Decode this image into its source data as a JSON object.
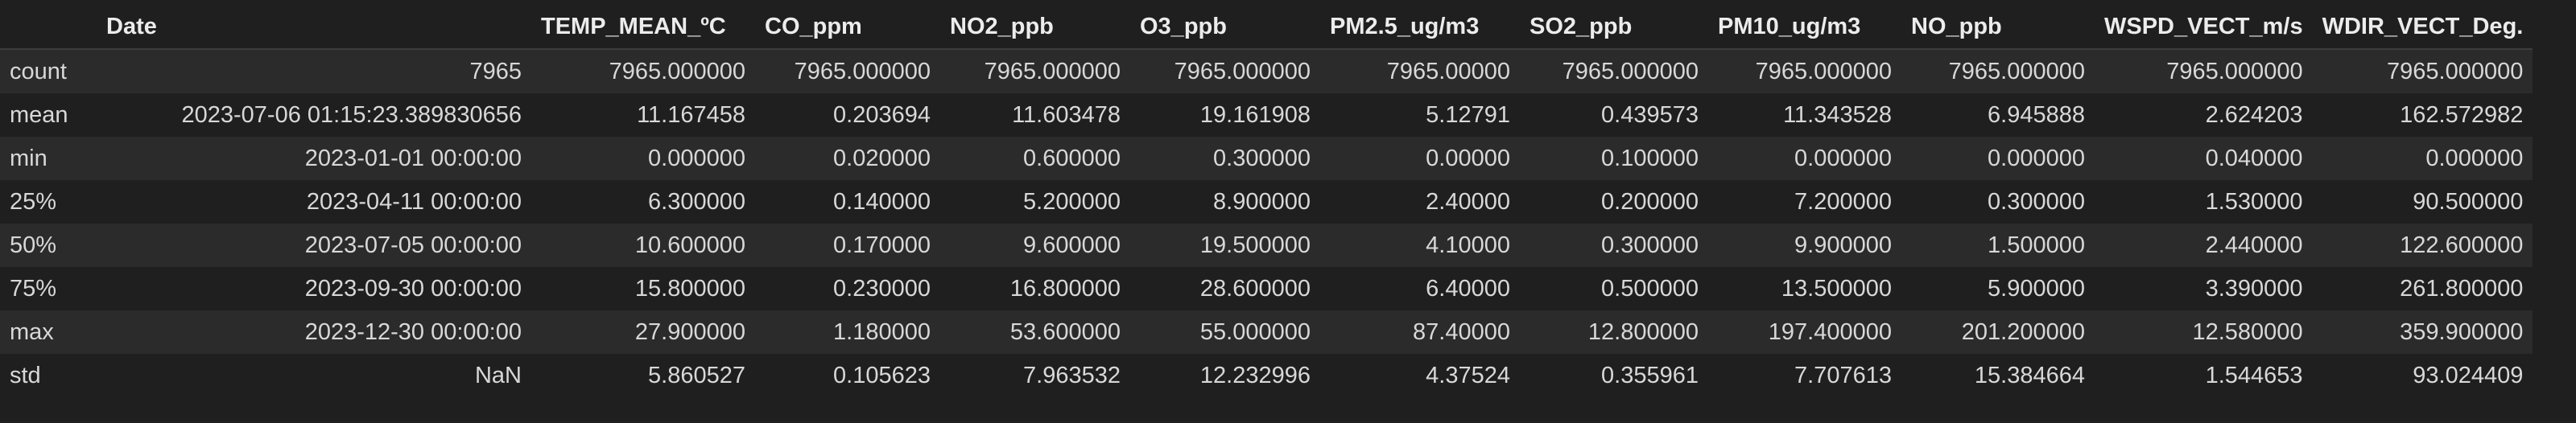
{
  "table": {
    "columns": [
      "Date",
      "TEMP_MEAN_ºC",
      "CO_ppm",
      "NO2_ppb",
      "O3_ppb",
      "PM2.5_ug/m3",
      "SO2_ppb",
      "PM10_ug/m3",
      "NO_ppb",
      "WSPD_VECT_m/s",
      "WDIR_VECT_Deg."
    ],
    "rows": [
      {
        "index": "count",
        "cells": [
          "7965",
          "7965.000000",
          "7965.000000",
          "7965.000000",
          "7965.000000",
          "7965.00000",
          "7965.000000",
          "7965.000000",
          "7965.000000",
          "7965.000000",
          "7965.000000"
        ]
      },
      {
        "index": "mean",
        "cells": [
          "2023-07-06 01:15:23.389830656",
          "11.167458",
          "0.203694",
          "11.603478",
          "19.161908",
          "5.12791",
          "0.439573",
          "11.343528",
          "6.945888",
          "2.624203",
          "162.572982"
        ]
      },
      {
        "index": "min",
        "cells": [
          "2023-01-01 00:00:00",
          "0.000000",
          "0.020000",
          "0.600000",
          "0.300000",
          "0.00000",
          "0.100000",
          "0.000000",
          "0.000000",
          "0.040000",
          "0.000000"
        ]
      },
      {
        "index": "25%",
        "cells": [
          "2023-04-11 00:00:00",
          "6.300000",
          "0.140000",
          "5.200000",
          "8.900000",
          "2.40000",
          "0.200000",
          "7.200000",
          "0.300000",
          "1.530000",
          "90.500000"
        ]
      },
      {
        "index": "50%",
        "cells": [
          "2023-07-05 00:00:00",
          "10.600000",
          "0.170000",
          "9.600000",
          "19.500000",
          "4.10000",
          "0.300000",
          "9.900000",
          "1.500000",
          "2.440000",
          "122.600000"
        ]
      },
      {
        "index": "75%",
        "cells": [
          "2023-09-30 00:00:00",
          "15.800000",
          "0.230000",
          "16.800000",
          "28.600000",
          "6.40000",
          "0.500000",
          "13.500000",
          "5.900000",
          "3.390000",
          "261.800000"
        ]
      },
      {
        "index": "max",
        "cells": [
          "2023-12-30 00:00:00",
          "27.900000",
          "1.180000",
          "53.600000",
          "55.000000",
          "87.40000",
          "12.800000",
          "197.400000",
          "201.200000",
          "12.580000",
          "359.900000"
        ]
      },
      {
        "index": "std",
        "cells": [
          "NaN",
          "5.860527",
          "0.105623",
          "7.963532",
          "12.232996",
          "4.37524",
          "0.355961",
          "7.707613",
          "15.384664",
          "1.544653",
          "93.024409"
        ]
      }
    ]
  }
}
